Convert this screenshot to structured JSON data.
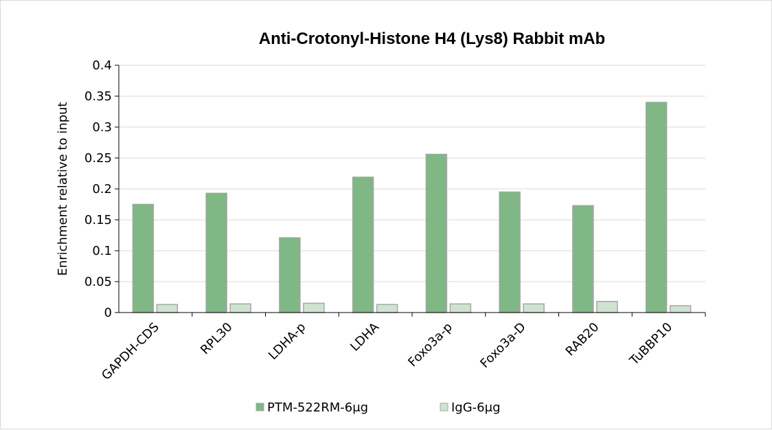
{
  "chart_data": {
    "type": "bar",
    "title": "Anti-Crotonyl-Histone H4 (Lys8) Rabbit mAb",
    "xlabel": "",
    "ylabel": "Enrichment relative to input",
    "ylim": [
      0,
      0.4
    ],
    "yticks": [
      "0",
      "0.05",
      "0.1",
      "0.15",
      "0.2",
      "0.25",
      "0.3",
      "0.35",
      "0.4"
    ],
    "grid": true,
    "legend_position": "bottom",
    "categories": [
      "GAPDH-CDS",
      "RPL30",
      "LDHA-p",
      "LDHA",
      "Foxo3a-p",
      "Foxo3a-D",
      "RAB20",
      "TuBBP10"
    ],
    "series": [
      {
        "name": "PTM-522RM-6μg",
        "color": "#7fb785",
        "values": [
          0.175,
          0.193,
          0.121,
          0.219,
          0.256,
          0.195,
          0.173,
          0.34
        ]
      },
      {
        "name": "IgG-6μg",
        "color": "#cfe3d1",
        "values": [
          0.013,
          0.014,
          0.015,
          0.013,
          0.014,
          0.014,
          0.018,
          0.011
        ]
      }
    ]
  }
}
